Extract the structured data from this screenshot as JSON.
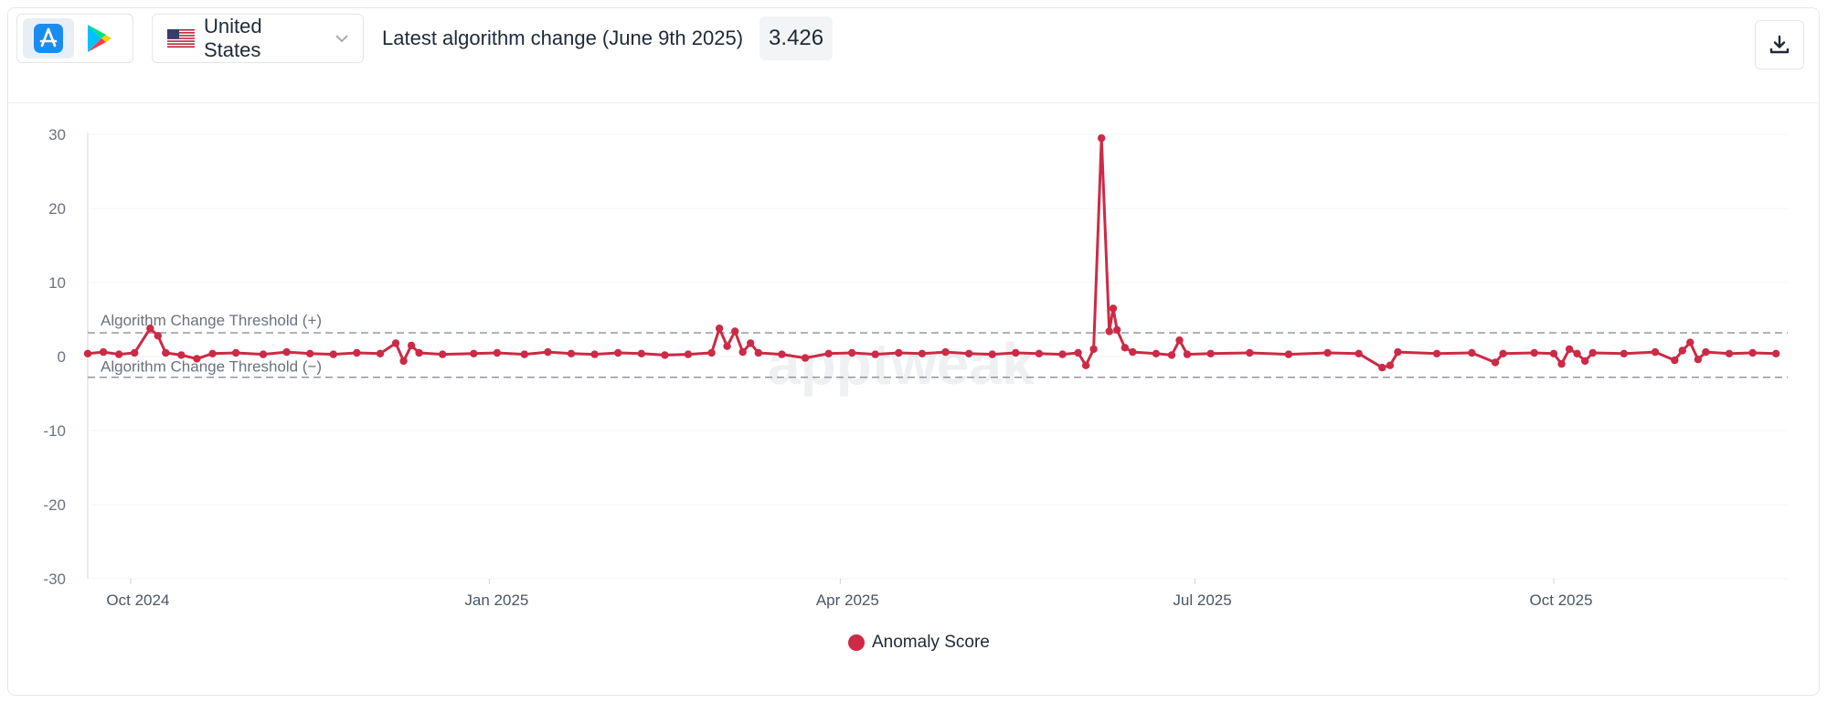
{
  "toolbar": {
    "stores": [
      {
        "name": "app-store",
        "active": true
      },
      {
        "name": "google-play",
        "active": false
      }
    ],
    "country": {
      "label": "United States",
      "flag": "us-flag-icon"
    },
    "algorithm_label": "Latest algorithm change (June 9th 2025)",
    "algorithm_value": "3.426"
  },
  "chart_data": {
    "type": "line",
    "x_axis": {
      "type": "time",
      "range": [
        "2024-09-20",
        "2025-11-30"
      ],
      "tick_labels": [
        "Oct 2024",
        "Jan 2025",
        "Apr 2025",
        "Jul 2025",
        "Oct 2025"
      ],
      "tick_dates": [
        "2024-10-01",
        "2025-01-01",
        "2025-04-01",
        "2025-07-01",
        "2025-10-01"
      ]
    },
    "y_axis": {
      "ylim": [
        -30,
        30
      ],
      "tick_values": [
        30,
        20,
        10,
        0,
        -10,
        -20,
        -30
      ],
      "tick_labels": [
        "30",
        "20",
        "10",
        "0",
        "-10",
        "-20",
        "-30"
      ]
    },
    "thresholds": [
      {
        "label": "Algorithm Change Threshold (+)",
        "value": 3.2
      },
      {
        "label": "Algorithm Change Threshold (−)",
        "value": -2.8
      }
    ],
    "series": [
      {
        "name": "Anomaly Score",
        "color": "#cc2a46",
        "points": [
          [
            "2024-09-20",
            0.4
          ],
          [
            "2024-09-24",
            0.6
          ],
          [
            "2024-09-28",
            0.3
          ],
          [
            "2024-10-02",
            0.5
          ],
          [
            "2024-10-06",
            3.8
          ],
          [
            "2024-10-08",
            2.8
          ],
          [
            "2024-10-10",
            0.5
          ],
          [
            "2024-10-14",
            0.2
          ],
          [
            "2024-10-18",
            -0.3
          ],
          [
            "2024-10-22",
            0.4
          ],
          [
            "2024-10-28",
            0.5
          ],
          [
            "2024-11-04",
            0.3
          ],
          [
            "2024-11-10",
            0.6
          ],
          [
            "2024-11-16",
            0.4
          ],
          [
            "2024-11-22",
            0.3
          ],
          [
            "2024-11-28",
            0.5
          ],
          [
            "2024-12-04",
            0.4
          ],
          [
            "2024-12-08",
            1.8
          ],
          [
            "2024-12-10",
            -0.6
          ],
          [
            "2024-12-12",
            1.5
          ],
          [
            "2024-12-14",
            0.5
          ],
          [
            "2024-12-20",
            0.3
          ],
          [
            "2024-12-28",
            0.4
          ],
          [
            "2025-01-03",
            0.5
          ],
          [
            "2025-01-10",
            0.3
          ],
          [
            "2025-01-16",
            0.6
          ],
          [
            "2025-01-22",
            0.4
          ],
          [
            "2025-01-28",
            0.3
          ],
          [
            "2025-02-03",
            0.5
          ],
          [
            "2025-02-09",
            0.4
          ],
          [
            "2025-02-15",
            0.2
          ],
          [
            "2025-02-21",
            0.3
          ],
          [
            "2025-02-27",
            0.5
          ],
          [
            "2025-03-01",
            3.8
          ],
          [
            "2025-03-03",
            1.4
          ],
          [
            "2025-03-05",
            3.4
          ],
          [
            "2025-03-07",
            0.6
          ],
          [
            "2025-03-09",
            1.8
          ],
          [
            "2025-03-11",
            0.5
          ],
          [
            "2025-03-17",
            0.3
          ],
          [
            "2025-03-23",
            -0.2
          ],
          [
            "2025-03-29",
            0.4
          ],
          [
            "2025-04-04",
            0.5
          ],
          [
            "2025-04-10",
            0.3
          ],
          [
            "2025-04-16",
            0.5
          ],
          [
            "2025-04-22",
            0.4
          ],
          [
            "2025-04-28",
            0.6
          ],
          [
            "2025-05-04",
            0.4
          ],
          [
            "2025-05-10",
            0.3
          ],
          [
            "2025-05-16",
            0.5
          ],
          [
            "2025-05-22",
            0.4
          ],
          [
            "2025-05-28",
            0.3
          ],
          [
            "2025-06-01",
            0.5
          ],
          [
            "2025-06-03",
            -1.2
          ],
          [
            "2025-06-05",
            1.0
          ],
          [
            "2025-06-07",
            29.5
          ],
          [
            "2025-06-09",
            3.4
          ],
          [
            "2025-06-10",
            6.5
          ],
          [
            "2025-06-11",
            3.6
          ],
          [
            "2025-06-13",
            1.2
          ],
          [
            "2025-06-15",
            0.6
          ],
          [
            "2025-06-21",
            0.4
          ],
          [
            "2025-06-25",
            0.2
          ],
          [
            "2025-06-27",
            2.2
          ],
          [
            "2025-06-29",
            0.3
          ],
          [
            "2025-07-05",
            0.4
          ],
          [
            "2025-07-15",
            0.5
          ],
          [
            "2025-07-25",
            0.3
          ],
          [
            "2025-08-04",
            0.5
          ],
          [
            "2025-08-12",
            0.4
          ],
          [
            "2025-08-18",
            -1.5
          ],
          [
            "2025-08-20",
            -1.2
          ],
          [
            "2025-08-22",
            0.6
          ],
          [
            "2025-09-01",
            0.4
          ],
          [
            "2025-09-10",
            0.5
          ],
          [
            "2025-09-16",
            -0.8
          ],
          [
            "2025-09-18",
            0.4
          ],
          [
            "2025-09-26",
            0.5
          ],
          [
            "2025-10-01",
            0.4
          ],
          [
            "2025-10-03",
            -1.0
          ],
          [
            "2025-10-05",
            1.0
          ],
          [
            "2025-10-07",
            0.4
          ],
          [
            "2025-10-09",
            -0.6
          ],
          [
            "2025-10-11",
            0.5
          ],
          [
            "2025-10-19",
            0.4
          ],
          [
            "2025-10-27",
            0.6
          ],
          [
            "2025-11-01",
            -0.5
          ],
          [
            "2025-11-03",
            0.8
          ],
          [
            "2025-11-05",
            1.9
          ],
          [
            "2025-11-07",
            -0.4
          ],
          [
            "2025-11-09",
            0.6
          ],
          [
            "2025-11-15",
            0.4
          ],
          [
            "2025-11-21",
            0.5
          ],
          [
            "2025-11-27",
            0.4
          ]
        ]
      }
    ],
    "legend": {
      "position": "bottom-center",
      "entries": [
        "Anomaly Score"
      ]
    },
    "grid": true
  }
}
